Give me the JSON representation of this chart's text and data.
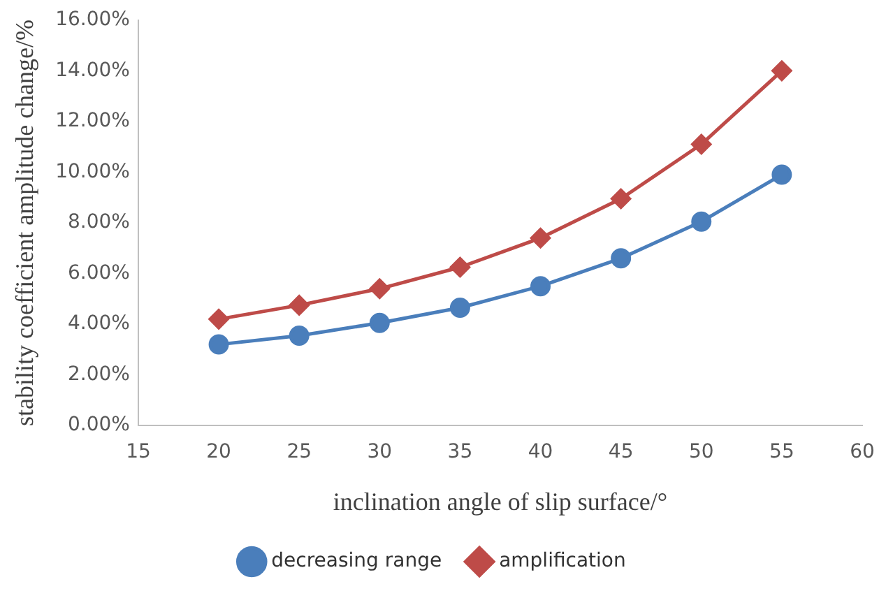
{
  "chart_data": {
    "type": "line",
    "xlabel": "inclination angle of slip surface/°",
    "ylabel": "stability coefficient amplitude change/%",
    "x": [
      20,
      25,
      30,
      35,
      40,
      45,
      50,
      55
    ],
    "series": [
      {
        "name": "decreasing range",
        "color": "#4a7ebb",
        "marker": "circle",
        "values": [
          3.2,
          3.55,
          4.05,
          4.65,
          5.5,
          6.6,
          8.05,
          9.9
        ]
      },
      {
        "name": "amplification",
        "color": "#be4b48",
        "marker": "diamond",
        "values": [
          4.2,
          4.75,
          5.4,
          6.25,
          7.4,
          8.95,
          11.1,
          14.0
        ]
      }
    ],
    "xlim": [
      15,
      60
    ],
    "xticks": [
      15,
      20,
      25,
      30,
      35,
      40,
      45,
      50,
      55,
      60
    ],
    "ylim": [
      0,
      16
    ],
    "yticks": [
      {
        "value": 0,
        "label": "0.00%"
      },
      {
        "value": 2,
        "label": "2.00%"
      },
      {
        "value": 4,
        "label": "4.00%"
      },
      {
        "value": 6,
        "label": "6.00%"
      },
      {
        "value": 8,
        "label": "8.00%"
      },
      {
        "value": 10,
        "label": "10.00%"
      },
      {
        "value": 12,
        "label": "12.00%"
      },
      {
        "value": 14,
        "label": "14.00%"
      },
      {
        "value": 16,
        "label": "16.00%"
      }
    ],
    "grid": false,
    "legend": "bottom",
    "line_style": "solid"
  }
}
